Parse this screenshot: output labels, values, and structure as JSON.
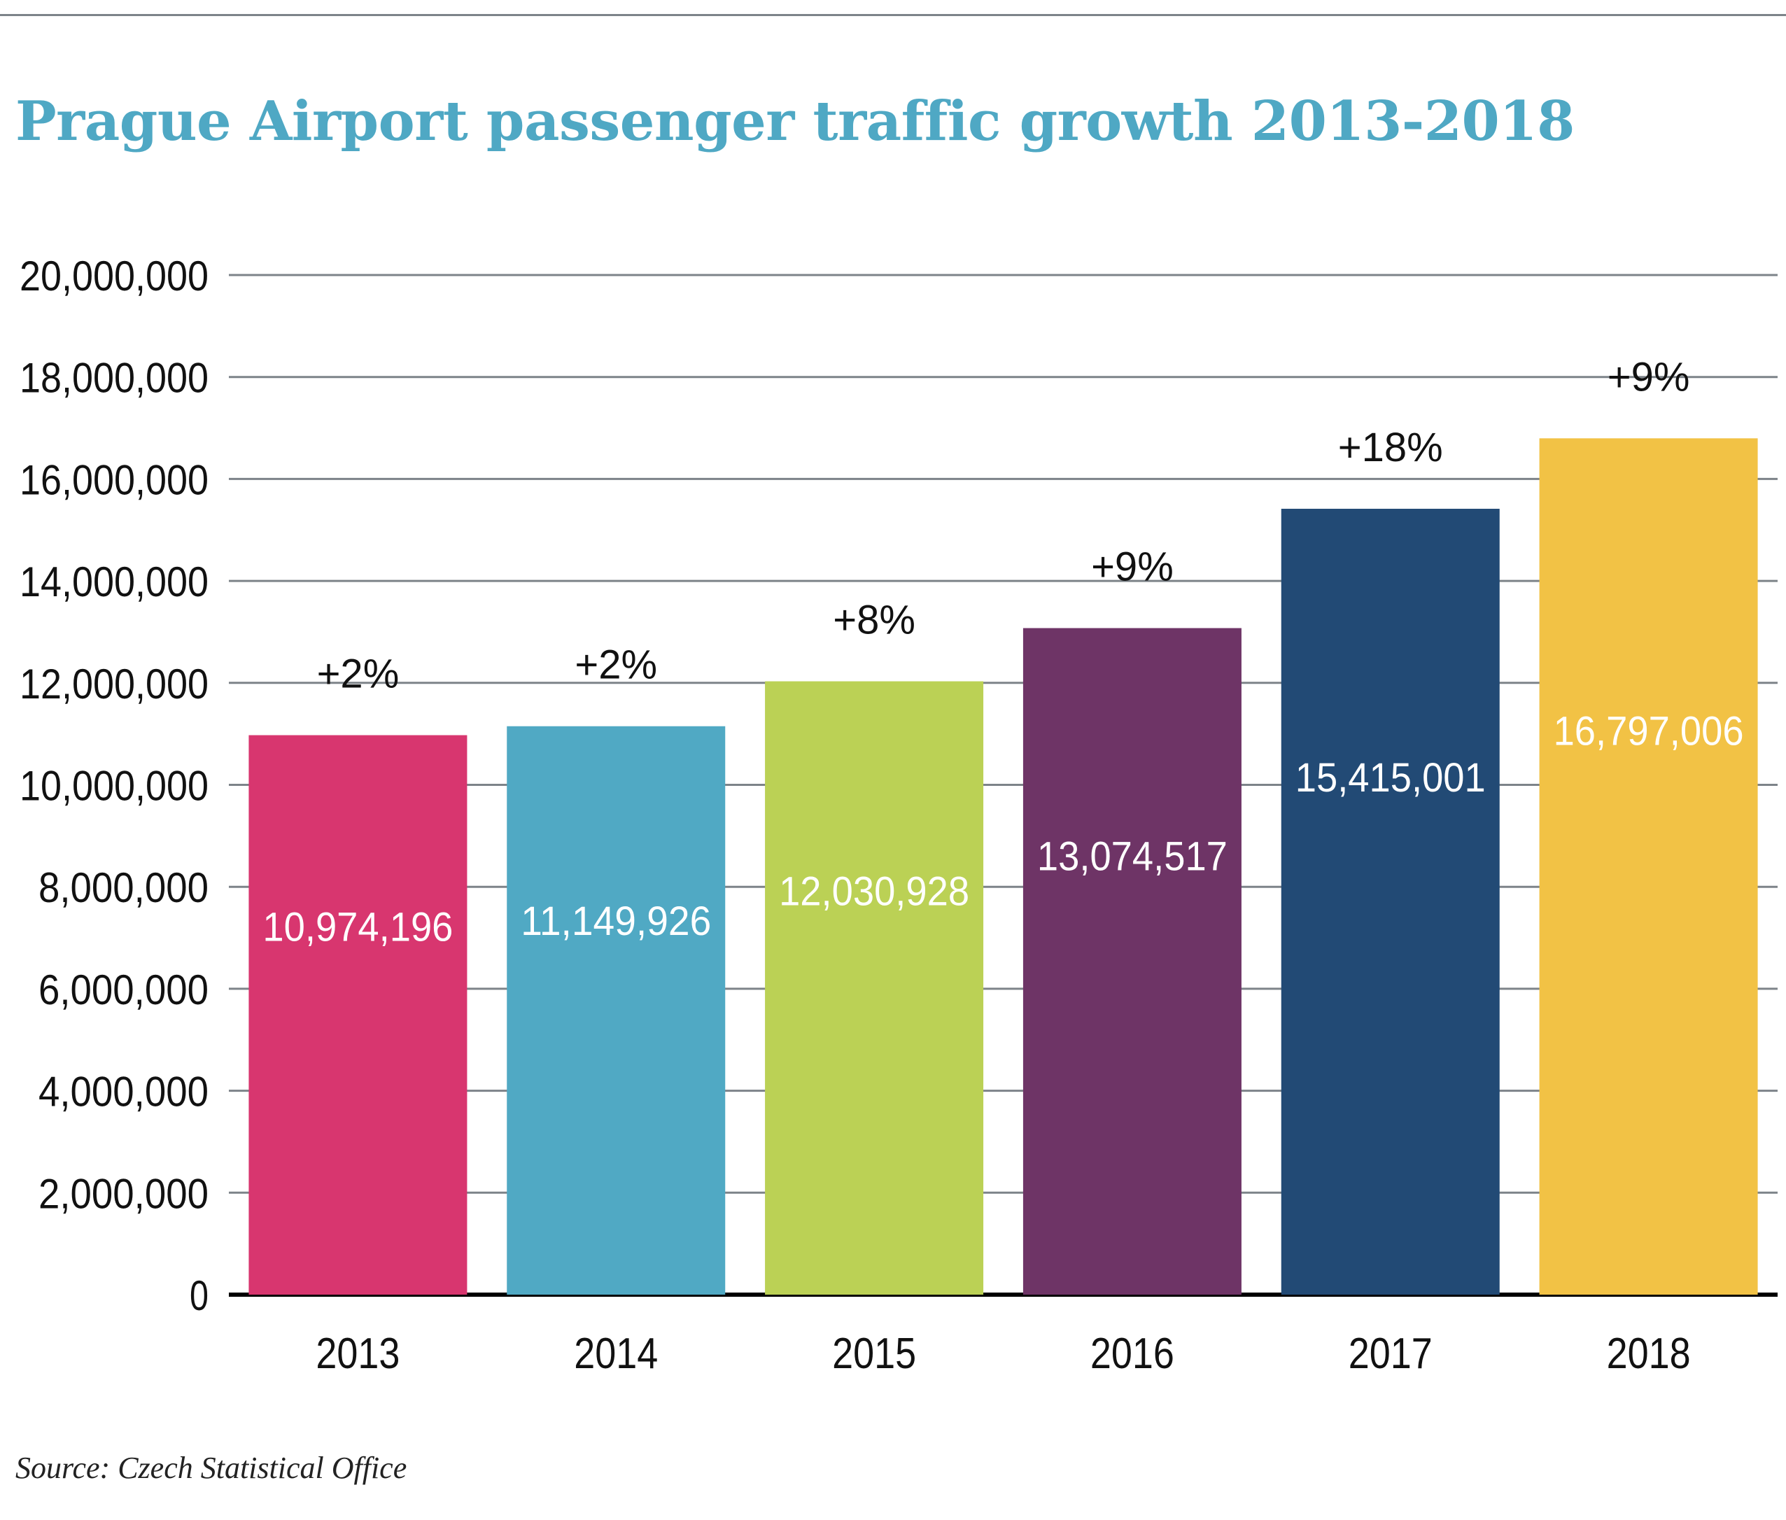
{
  "chart_data": {
    "type": "bar",
    "title": "Prague Airport passenger traffic growth 2013-2018",
    "categories": [
      "2013",
      "2014",
      "2015",
      "2016",
      "2017",
      "2018"
    ],
    "values": [
      10974196,
      11149926,
      12030928,
      13074517,
      15415001,
      16797006
    ],
    "value_labels": [
      "10,974,196",
      "11,149,926",
      "12,030,928",
      "13,074,517",
      "15,415,001",
      "16,797,006"
    ],
    "growth_labels": [
      "+2%",
      "+2%",
      "+8%",
      "+9%",
      "+18%",
      "+9%"
    ],
    "colors": [
      "#d8366f",
      "#50a9c4",
      "#bbd155",
      "#6e3466",
      "#224a75",
      "#f2c245"
    ],
    "ylim": [
      0,
      20000000
    ],
    "yticks": [
      0,
      2000000,
      4000000,
      6000000,
      8000000,
      10000000,
      12000000,
      14000000,
      16000000,
      18000000,
      20000000
    ],
    "ytick_labels": [
      "0",
      "2,000,000",
      "4,000,000",
      "6,000,000",
      "8,000,000",
      "10,000,000",
      "12,000,000",
      "14,000,000",
      "16,000,000",
      "18,000,000",
      "20,000,000"
    ],
    "xlabel": "",
    "ylabel": "",
    "grid": true,
    "legend": "none"
  },
  "source": "Source: Czech Statistical Office"
}
